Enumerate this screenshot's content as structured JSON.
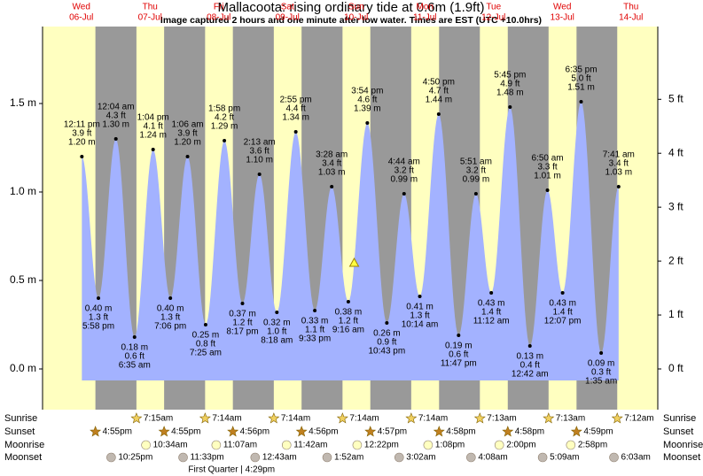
{
  "chart_data": {
    "type": "area",
    "title": "Mallacoota: rising  ordinary tide at 0.6m (1.9ft)",
    "subtitle": "Image captured 2 hours and one minute after low water. Times are EST (UTC +10.0hrs)",
    "current_height": 0.6,
    "ylim": [
      -0.23,
      1.935
    ],
    "yticks": [
      {
        "value": 0,
        "label": "0.0 m"
      },
      {
        "value": 0.5,
        "label": "0.5 m"
      },
      {
        "value": 1,
        "label": "1.0 m"
      },
      {
        "value": 1.5,
        "label": "1.5 m"
      }
    ],
    "y2lim": [
      -0.755,
      6.35
    ],
    "y2ticks": [
      {
        "value": 0,
        "label": "0 ft"
      },
      {
        "value": 1,
        "label": "1 ft"
      },
      {
        "value": 2,
        "label": "2 ft"
      },
      {
        "value": 3,
        "label": "3 ft"
      },
      {
        "value": 4,
        "label": "4 ft"
      },
      {
        "value": 5,
        "label": "5 ft"
      }
    ],
    "row_labels": [
      "Sunrise",
      "Sunset",
      "Moonrise",
      "Moonset"
    ],
    "colors": {
      "day": "#ffffc0",
      "night": "#999999",
      "tide": "#a3b2ff",
      "header": "#e00000"
    },
    "days": [
      {
        "weekday": "Wed",
        "date": "06-Jul",
        "sunset": "4:55pm",
        "moonset": "10:25pm",
        "tides": [
          {
            "time": "12:11 pm",
            "height": 1.2,
            "height_label": "1.20 m",
            "ft_label": "3.9 ft"
          },
          {
            "time": "5:58 pm",
            "height": 0.4,
            "height_label": "0.40 m",
            "ft_label": "1.3 ft"
          }
        ]
      },
      {
        "weekday": "Thu",
        "date": "07-Jul",
        "sunrise": "7:15am",
        "sunset": "4:55pm",
        "moonrise": "10:34am",
        "moonset": "11:33pm",
        "tides": [
          {
            "time": "12:04 am",
            "height": 1.3,
            "height_label": "1.30 m",
            "ft_label": "4.3 ft"
          },
          {
            "time": "6:35 am",
            "height": 0.18,
            "height_label": "0.18 m",
            "ft_label": "0.6 ft"
          },
          {
            "time": "1:04 pm",
            "height": 1.24,
            "height_label": "1.24 m",
            "ft_label": "4.1 ft"
          },
          {
            "time": "7:06 pm",
            "height": 0.4,
            "height_label": "0.40 m",
            "ft_label": "1.3 ft"
          }
        ]
      },
      {
        "weekday": "Fri",
        "date": "08-Jul",
        "sunrise": "7:14am",
        "sunset": "4:56pm",
        "moonrise": "11:07am",
        "phase": "First Quarter | 4:29pm",
        "tides": [
          {
            "time": "1:06 am",
            "height": 1.2,
            "height_label": "1.20 m",
            "ft_label": "3.9 ft"
          },
          {
            "time": "7:25 am",
            "height": 0.25,
            "height_label": "0.25 m",
            "ft_label": "0.8 ft"
          },
          {
            "time": "1:58 pm",
            "height": 1.29,
            "height_label": "1.29 m",
            "ft_label": "4.2 ft"
          },
          {
            "time": "8:17 pm",
            "height": 0.37,
            "height_label": "0.37 m",
            "ft_label": "1.2 ft"
          }
        ]
      },
      {
        "weekday": "Sat",
        "date": "09-Jul",
        "sunrise": "7:14am",
        "sunset": "4:56pm",
        "moonrise": "11:42am",
        "moonset": "12:43am",
        "tides": [
          {
            "time": "2:13 am",
            "height": 1.1,
            "height_label": "1.10 m",
            "ft_label": "3.6 ft"
          },
          {
            "time": "8:18 am",
            "height": 0.32,
            "height_label": "0.32 m",
            "ft_label": "1.0 ft"
          },
          {
            "time": "2:55 pm",
            "height": 1.34,
            "height_label": "1.34 m",
            "ft_label": "4.4 ft"
          },
          {
            "time": "9:33 pm",
            "height": 0.33,
            "height_label": "0.33 m",
            "ft_label": "1.1 ft"
          }
        ]
      },
      {
        "weekday": "Sun",
        "date": "10-Jul",
        "sunrise": "7:14am",
        "sunset": "4:57pm",
        "moonrise": "12:22pm",
        "moonset": "1:52am",
        "tides": [
          {
            "time": "3:28 am",
            "height": 1.03,
            "height_label": "1.03 m",
            "ft_label": "3.4 ft"
          },
          {
            "time": "9:16 am",
            "height": 0.38,
            "height_label": "0.38 m",
            "ft_label": "1.2 ft"
          },
          {
            "time": "3:54 pm",
            "height": 1.39,
            "height_label": "1.39 m",
            "ft_label": "4.6 ft"
          },
          {
            "time": "10:43 pm",
            "height": 0.26,
            "height_label": "0.26 m",
            "ft_label": "0.9 ft"
          }
        ]
      },
      {
        "weekday": "Mon",
        "date": "11-Jul",
        "sunrise": "7:14am",
        "sunset": "4:58pm",
        "moonrise": "1:08pm",
        "moonset": "3:02am",
        "tides": [
          {
            "time": "4:44 am",
            "height": 0.99,
            "height_label": "0.99 m",
            "ft_label": "3.2 ft"
          },
          {
            "time": "10:14 am",
            "height": 0.41,
            "height_label": "0.41 m",
            "ft_label": "1.3 ft"
          },
          {
            "time": "4:50 pm",
            "height": 1.44,
            "height_label": "1.44 m",
            "ft_label": "4.7 ft"
          },
          {
            "time": "11:47 pm",
            "height": 0.19,
            "height_label": "0.19 m",
            "ft_label": "0.6 ft"
          }
        ]
      },
      {
        "weekday": "Tue",
        "date": "12-Jul",
        "sunrise": "7:13am",
        "sunset": "4:58pm",
        "moonrise": "2:00pm",
        "moonset": "4:08am",
        "tides": [
          {
            "time": "5:51 am",
            "height": 0.99,
            "height_label": "0.99 m",
            "ft_label": "3.2 ft"
          },
          {
            "time": "11:12 am",
            "height": 0.43,
            "height_label": "0.43 m",
            "ft_label": "1.4 ft"
          },
          {
            "time": "5:45 pm",
            "height": 1.48,
            "height_label": "1.48 m",
            "ft_label": "4.9 ft"
          }
        ]
      },
      {
        "weekday": "Wed",
        "date": "13-Jul",
        "sunrise": "7:13am",
        "sunset": "4:59pm",
        "moonrise": "2:58pm",
        "moonset": "5:09am",
        "tides": [
          {
            "time": "12:42 am",
            "height": 0.13,
            "height_label": "0.13 m",
            "ft_label": "0.4 ft"
          },
          {
            "time": "6:50 am",
            "height": 1.01,
            "height_label": "1.01 m",
            "ft_label": "3.3 ft"
          },
          {
            "time": "12:07 pm",
            "height": 0.43,
            "height_label": "0.43 m",
            "ft_label": "1.4 ft"
          },
          {
            "time": "6:35 pm",
            "height": 1.51,
            "height_label": "1.51 m",
            "ft_label": "5.0 ft"
          }
        ]
      },
      {
        "weekday": "Thu",
        "date": "14-Jul",
        "sunrise": "7:12am",
        "moonset": "6:03am",
        "tides": [
          {
            "time": "1:35 am",
            "height": 0.09,
            "height_label": "0.09 m",
            "ft_label": "0.3 ft"
          },
          {
            "time": "7:41 am",
            "height": 1.03,
            "height_label": "1.03 m",
            "ft_label": "3.4 ft"
          }
        ]
      }
    ]
  }
}
